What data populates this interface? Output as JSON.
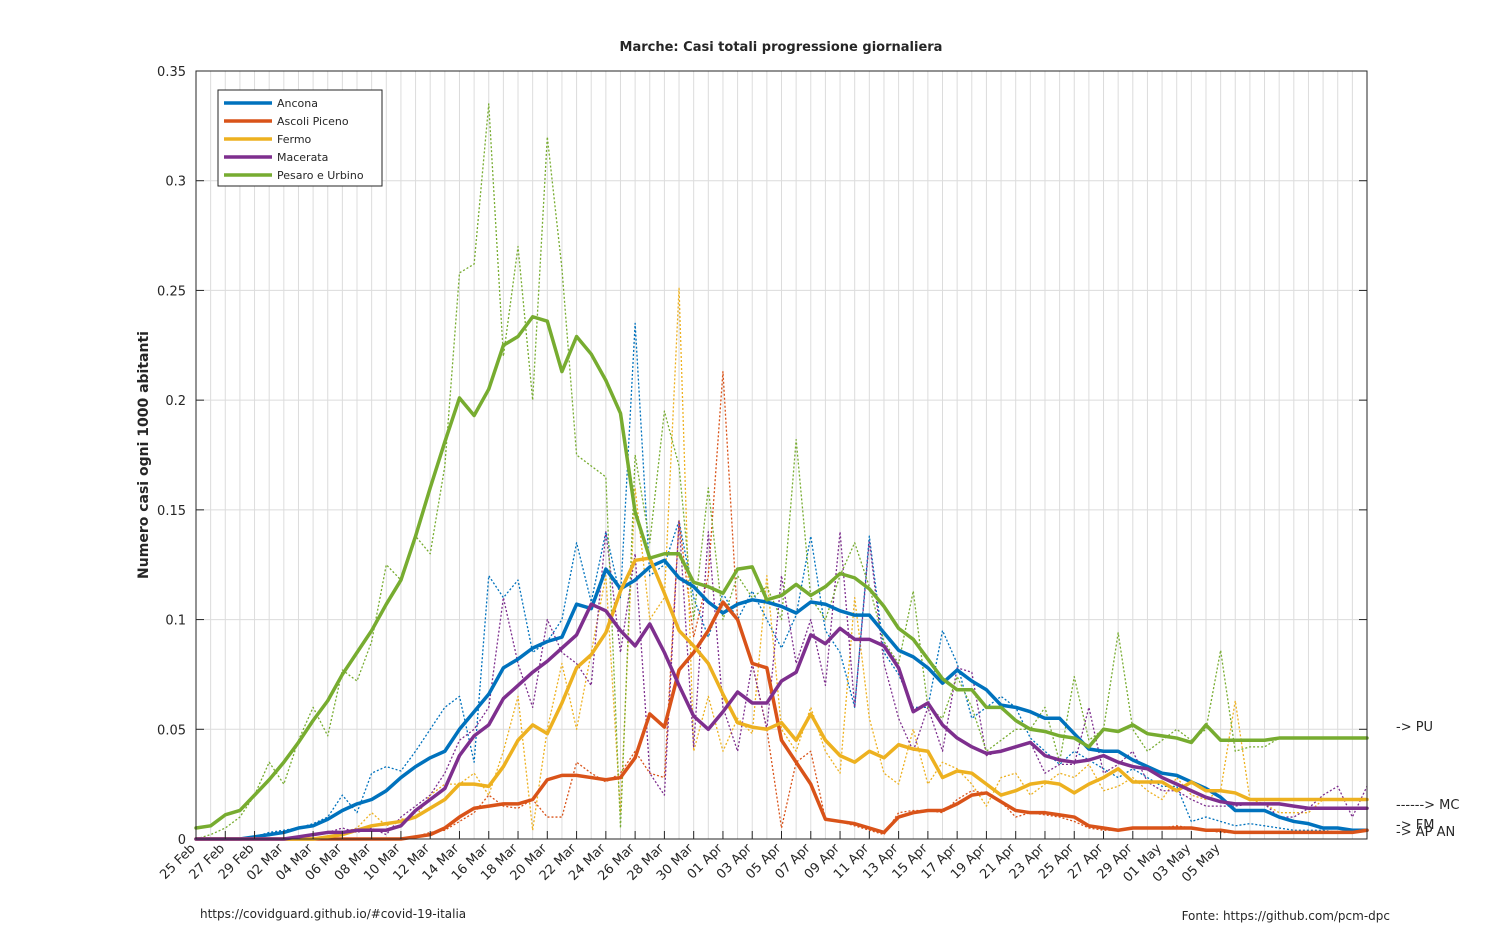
{
  "chart_data": {
    "type": "line",
    "title": "Marche: Casi totali progressione giornaliera",
    "xlabel": "",
    "ylabel": "Numero casi ogni 1000 abitanti",
    "ylim": [
      0,
      0.35
    ],
    "yticks": [
      0,
      0.05,
      0.1,
      0.15,
      0.2,
      0.25,
      0.3,
      0.35
    ],
    "ytick_labels": [
      "0",
      "0.05",
      "0.1",
      "0.15",
      "0.2",
      "0.25",
      "0.3",
      "0.35"
    ],
    "x_start": "2020-02-25",
    "x_end": "2020-05-05",
    "xtick_labels": [
      "25 Feb",
      "27 Feb",
      "29 Feb",
      "02 Mar",
      "04 Mar",
      "06 Mar",
      "08 Mar",
      "10 Mar",
      "12 Mar",
      "14 Mar",
      "16 Mar",
      "18 Mar",
      "20 Mar",
      "22 Mar",
      "24 Mar",
      "26 Mar",
      "28 Mar",
      "30 Mar",
      "01 Apr",
      "03 Apr",
      "05 Apr",
      "07 Apr",
      "09 Apr",
      "11 Apr",
      "13 Apr",
      "15 Apr",
      "17 Apr",
      "19 Apr",
      "21 Apr",
      "23 Apr",
      "25 Apr",
      "27 Apr",
      "29 Apr",
      "01 May",
      "03 May",
      "05 May"
    ],
    "grid": true,
    "legend_position": "top-left",
    "note_smoothed": "solid lines are smoothed averages; dotted lines are raw daily values",
    "series": [
      {
        "name": "Ancona",
        "color": "#0072bd",
        "smoothed": [
          0,
          0,
          0,
          0,
          0.001,
          0.002,
          0.003,
          0.005,
          0.006,
          0.009,
          0.013,
          0.016,
          0.018,
          0.022,
          0.028,
          0.033,
          0.037,
          0.04,
          0.05,
          0.058,
          0.066,
          0.078,
          0.082,
          0.087,
          0.09,
          0.092,
          0.107,
          0.105,
          0.123,
          0.114,
          0.118,
          0.124,
          0.127,
          0.119,
          0.115,
          0.108,
          0.103,
          0.107,
          0.109,
          0.108,
          0.106,
          0.103,
          0.108,
          0.107,
          0.104,
          0.102,
          0.102,
          0.094,
          0.086,
          0.083,
          0.078,
          0.071,
          0.077,
          0.072,
          0.068,
          0.061,
          0.06,
          0.058,
          0.055,
          0.055,
          0.048,
          0.041,
          0.04,
          0.04,
          0.036,
          0.033,
          0.03,
          0.029,
          0.026,
          0.023,
          0.019,
          0.013,
          0.013,
          0.013,
          0.01,
          0.008,
          0.007,
          0.005,
          0.005,
          0.004,
          0.004
        ],
        "raw": [
          0,
          0,
          0,
          0,
          0.001,
          0.003,
          0.004,
          0.005,
          0.007,
          0.01,
          0.02,
          0.012,
          0.03,
          0.033,
          0.031,
          0.04,
          0.05,
          0.06,
          0.065,
          0.035,
          0.12,
          0.11,
          0.118,
          0.085,
          0.09,
          0.1,
          0.135,
          0.108,
          0.14,
          0.11,
          0.235,
          0.12,
          0.125,
          0.145,
          0.11,
          0.092,
          0.112,
          0.1,
          0.113,
          0.1,
          0.087,
          0.102,
          0.138,
          0.095,
          0.085,
          0.06,
          0.138,
          0.085,
          0.075,
          0.06,
          0.06,
          0.095,
          0.08,
          0.055,
          0.06,
          0.065,
          0.06,
          0.046,
          0.04,
          0.034,
          0.04,
          0.036,
          0.032,
          0.028,
          0.032,
          0.028,
          0.024,
          0.024,
          0.008,
          0.01,
          0.008,
          0.006,
          0.007,
          0.006,
          0.005,
          0.004,
          0.004,
          0.004,
          0.003,
          0.004,
          0.004
        ]
      },
      {
        "name": "Ascoli Piceno",
        "color": "#d95319",
        "smoothed": [
          0,
          0,
          0,
          0,
          0,
          0,
          0,
          0,
          0,
          0,
          0,
          0,
          0,
          0,
          0,
          0.001,
          0.002,
          0.005,
          0.01,
          0.014,
          0.015,
          0.016,
          0.016,
          0.018,
          0.027,
          0.029,
          0.029,
          0.028,
          0.027,
          0.028,
          0.037,
          0.057,
          0.051,
          0.077,
          0.085,
          0.095,
          0.108,
          0.1,
          0.08,
          0.078,
          0.045,
          0.035,
          0.025,
          0.009,
          0.008,
          0.007,
          0.005,
          0.003,
          0.01,
          0.012,
          0.013,
          0.013,
          0.016,
          0.02,
          0.021,
          0.017,
          0.013,
          0.012,
          0.012,
          0.011,
          0.01,
          0.006,
          0.005,
          0.004,
          0.005,
          0.005,
          0.005,
          0.005,
          0.005,
          0.004,
          0.004,
          0.003,
          0.003,
          0.003,
          0.003,
          0.003,
          0.003,
          0.003,
          0.003,
          0.003,
          0.004
        ],
        "raw": [
          0,
          0,
          0,
          0,
          0,
          0,
          0,
          0,
          0,
          0,
          0,
          0,
          0,
          0,
          0,
          0.001,
          0.003,
          0.004,
          0.008,
          0.012,
          0.02,
          0.015,
          0.014,
          0.018,
          0.01,
          0.01,
          0.035,
          0.03,
          0.026,
          0.03,
          0.04,
          0.03,
          0.028,
          0.145,
          0.092,
          0.12,
          0.213,
          0.1,
          0.08,
          0.05,
          0.005,
          0.035,
          0.04,
          0.009,
          0.008,
          0.006,
          0.004,
          0.002,
          0.012,
          0.013,
          0.013,
          0.012,
          0.018,
          0.022,
          0.021,
          0.017,
          0.01,
          0.012,
          0.011,
          0.01,
          0.008,
          0.005,
          0.004,
          0.004,
          0.005,
          0.005,
          0.005,
          0.006,
          0.005,
          0.004,
          0.003,
          0.003,
          0.003,
          0.003,
          0.003,
          0.003,
          0.003,
          0.003,
          0.003,
          0.003,
          0.004
        ]
      },
      {
        "name": "Fermo",
        "color": "#edb120",
        "smoothed": [
          0,
          0,
          0,
          0,
          0,
          0,
          0,
          0,
          0,
          0.001,
          0.002,
          0.004,
          0.006,
          0.007,
          0.008,
          0.01,
          0.014,
          0.018,
          0.025,
          0.025,
          0.024,
          0.033,
          0.045,
          0.052,
          0.048,
          0.062,
          0.078,
          0.084,
          0.094,
          0.113,
          0.127,
          0.128,
          0.112,
          0.095,
          0.088,
          0.08,
          0.066,
          0.053,
          0.051,
          0.05,
          0.053,
          0.045,
          0.057,
          0.045,
          0.038,
          0.035,
          0.04,
          0.037,
          0.043,
          0.041,
          0.04,
          0.028,
          0.031,
          0.03,
          0.025,
          0.02,
          0.022,
          0.025,
          0.026,
          0.025,
          0.021,
          0.025,
          0.028,
          0.032,
          0.026,
          0.026,
          0.026,
          0.022,
          0.026,
          0.022,
          0.022,
          0.021,
          0.018,
          0.018,
          0.018,
          0.018,
          0.018,
          0.018,
          0.018,
          0.018,
          0.018
        ],
        "raw": [
          0,
          0,
          0,
          0,
          0,
          0,
          0,
          0,
          0,
          0.001,
          0.003,
          0.005,
          0.012,
          0.006,
          0.009,
          0.01,
          0.02,
          0.025,
          0.025,
          0.03,
          0.02,
          0.04,
          0.065,
          0.004,
          0.05,
          0.08,
          0.05,
          0.085,
          0.12,
          0.012,
          0.16,
          0.1,
          0.11,
          0.251,
          0.04,
          0.065,
          0.04,
          0.055,
          0.048,
          0.12,
          0.05,
          0.04,
          0.06,
          0.04,
          0.03,
          0.11,
          0.055,
          0.03,
          0.025,
          0.05,
          0.025,
          0.035,
          0.032,
          0.025,
          0.015,
          0.028,
          0.03,
          0.02,
          0.025,
          0.03,
          0.028,
          0.034,
          0.022,
          0.024,
          0.028,
          0.022,
          0.018,
          0.028,
          0.02,
          0.018,
          0.022,
          0.063,
          0.018,
          0.016,
          0.012,
          0.012,
          0.012,
          0.018,
          0.018,
          0.018,
          0.018
        ]
      },
      {
        "name": "Macerata",
        "color": "#7e2f8e",
        "smoothed": [
          0,
          0,
          0,
          0,
          0,
          0,
          0,
          0.001,
          0.002,
          0.003,
          0.003,
          0.004,
          0.004,
          0.004,
          0.006,
          0.013,
          0.018,
          0.023,
          0.038,
          0.047,
          0.052,
          0.064,
          0.07,
          0.076,
          0.081,
          0.087,
          0.093,
          0.107,
          0.104,
          0.095,
          0.088,
          0.098,
          0.085,
          0.07,
          0.056,
          0.05,
          0.058,
          0.067,
          0.062,
          0.062,
          0.072,
          0.076,
          0.093,
          0.089,
          0.096,
          0.091,
          0.091,
          0.088,
          0.078,
          0.058,
          0.062,
          0.052,
          0.046,
          0.042,
          0.039,
          0.04,
          0.042,
          0.044,
          0.038,
          0.036,
          0.035,
          0.036,
          0.038,
          0.035,
          0.033,
          0.032,
          0.028,
          0.025,
          0.022,
          0.019,
          0.017,
          0.016,
          0.016,
          0.016,
          0.016,
          0.015,
          0.014,
          0.014,
          0.014,
          0.014,
          0.014
        ],
        "raw": [
          0,
          0,
          0,
          0,
          0,
          0,
          0,
          0.001,
          0.002,
          0.003,
          0.005,
          0.003,
          0.005,
          0.002,
          0.01,
          0.015,
          0.02,
          0.03,
          0.045,
          0.05,
          0.06,
          0.11,
          0.08,
          0.06,
          0.1,
          0.085,
          0.08,
          0.07,
          0.14,
          0.085,
          0.13,
          0.03,
          0.02,
          0.145,
          0.042,
          0.14,
          0.06,
          0.04,
          0.08,
          0.05,
          0.12,
          0.08,
          0.1,
          0.07,
          0.14,
          0.06,
          0.136,
          0.08,
          0.055,
          0.04,
          0.06,
          0.04,
          0.078,
          0.076,
          0.038,
          0.04,
          0.042,
          0.044,
          0.03,
          0.034,
          0.034,
          0.06,
          0.03,
          0.034,
          0.04,
          0.026,
          0.022,
          0.022,
          0.018,
          0.015,
          0.015,
          0.015,
          0.016,
          0.016,
          0.01,
          0.01,
          0.014,
          0.02,
          0.024,
          0.01,
          0.024
        ]
      },
      {
        "name": "Pesaro e Urbino",
        "color": "#77ac30",
        "smoothed": [
          0.005,
          0.006,
          0.011,
          0.013,
          0.02,
          0.027,
          0.035,
          0.044,
          0.054,
          0.063,
          0.075,
          0.085,
          0.095,
          0.107,
          0.118,
          0.138,
          0.16,
          0.181,
          0.201,
          0.193,
          0.205,
          0.225,
          0.229,
          0.238,
          0.236,
          0.213,
          0.229,
          0.221,
          0.209,
          0.194,
          0.149,
          0.128,
          0.13,
          0.13,
          0.117,
          0.115,
          0.112,
          0.123,
          0.124,
          0.109,
          0.111,
          0.116,
          0.111,
          0.115,
          0.121,
          0.119,
          0.114,
          0.106,
          0.096,
          0.091,
          0.082,
          0.073,
          0.068,
          0.068,
          0.06,
          0.06,
          0.054,
          0.05,
          0.049,
          0.047,
          0.046,
          0.042,
          0.05,
          0.049,
          0.052,
          0.048,
          0.047,
          0.046,
          0.044,
          0.052,
          0.045,
          0.045,
          0.045,
          0.045,
          0.046,
          0.046,
          0.046,
          0.046,
          0.046,
          0.046,
          0.046
        ],
        "raw": [
          0,
          0.002,
          0.005,
          0.01,
          0.02,
          0.035,
          0.025,
          0.045,
          0.06,
          0.047,
          0.077,
          0.072,
          0.09,
          0.125,
          0.118,
          0.138,
          0.13,
          0.17,
          0.258,
          0.262,
          0.335,
          0.22,
          0.27,
          0.2,
          0.32,
          0.26,
          0.175,
          0.17,
          0.165,
          0.005,
          0.175,
          0.135,
          0.195,
          0.17,
          0.1,
          0.16,
          0.1,
          0.12,
          0.11,
          0.115,
          0.1,
          0.182,
          0.11,
          0.1,
          0.12,
          0.135,
          0.115,
          0.09,
          0.08,
          0.113,
          0.06,
          0.055,
          0.074,
          0.06,
          0.04,
          0.045,
          0.05,
          0.05,
          0.06,
          0.035,
          0.074,
          0.045,
          0.05,
          0.094,
          0.05,
          0.04,
          0.045,
          0.05,
          0.045,
          0.05,
          0.086,
          0.04,
          0.042,
          0.042,
          0.046,
          0.046,
          0.046,
          0.046,
          0.046,
          0.046,
          0.046
        ]
      }
    ]
  },
  "end_labels": [
    {
      "text": "-> PU"
    },
    {
      "text": "------> MC"
    },
    {
      "text": "-> FM"
    },
    {
      "text": "-> AP AN"
    }
  ],
  "footer": {
    "left": "https://covidguard.github.io/#covid-19-italia",
    "right": "Fonte: https://github.com/pcm-dpc"
  }
}
